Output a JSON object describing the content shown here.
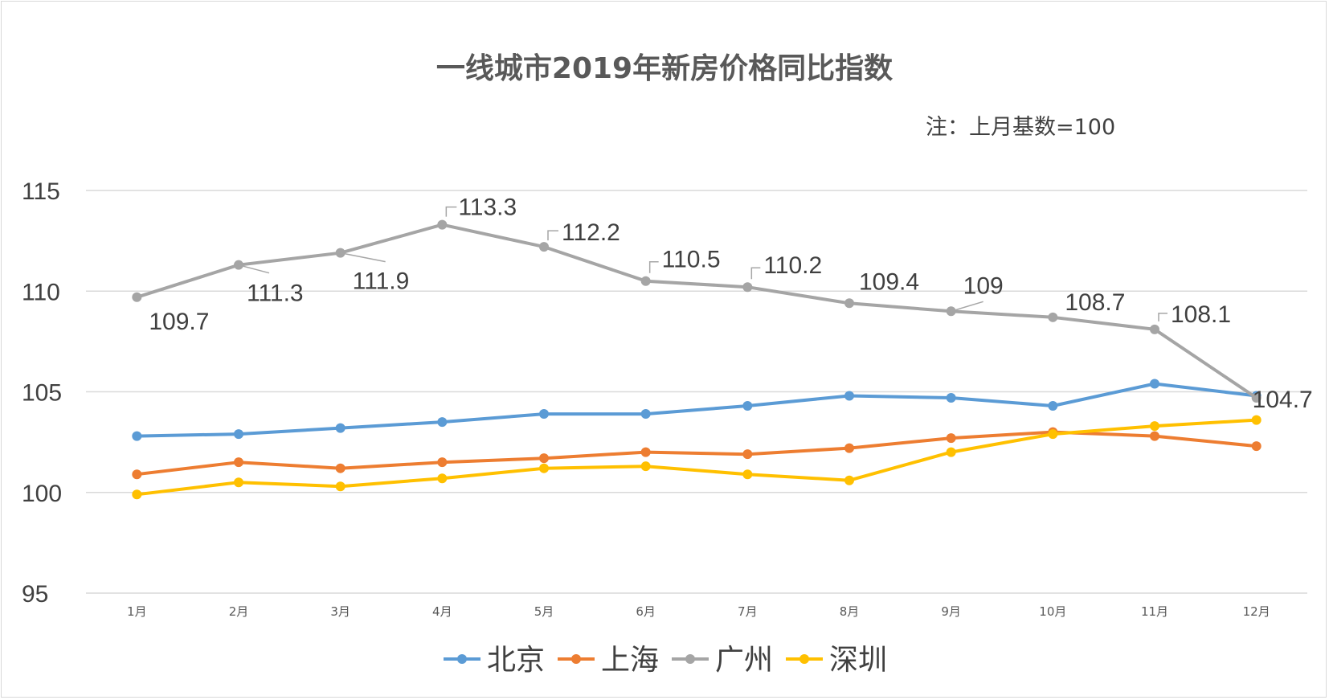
{
  "chart_data": {
    "type": "line",
    "title": "一线城市2019年新房价格同比指数",
    "annotation": "注：上月基数=100",
    "categories": [
      "1月",
      "2月",
      "3月",
      "4月",
      "5月",
      "6月",
      "7月",
      "8月",
      "9月",
      "10月",
      "11月",
      "12月"
    ],
    "ylim": [
      95,
      115
    ],
    "yticks": [
      95,
      100,
      105,
      110,
      115
    ],
    "grid": true,
    "legend_position": "bottom",
    "series": [
      {
        "name": "北京",
        "color": "#5b9bd5",
        "values": [
          102.8,
          102.9,
          103.2,
          103.5,
          103.9,
          103.9,
          104.3,
          104.8,
          104.7,
          104.3,
          105.4,
          104.8
        ]
      },
      {
        "name": "上海",
        "color": "#ed7d31",
        "values": [
          100.9,
          101.5,
          101.2,
          101.5,
          101.7,
          102.0,
          101.9,
          102.2,
          102.7,
          103.0,
          102.8,
          102.3
        ]
      },
      {
        "name": "广州",
        "color": "#a5a5a5",
        "values": [
          109.7,
          111.3,
          111.9,
          113.3,
          112.2,
          110.5,
          110.2,
          109.4,
          109.0,
          108.7,
          108.1,
          104.7
        ],
        "data_labels": [
          "109.7",
          "111.3",
          "111.9",
          "113.3",
          "112.2",
          "110.5",
          "110.2",
          "109.4",
          "109",
          "108.7",
          "108.1",
          "104.7"
        ]
      },
      {
        "name": "深圳",
        "color": "#ffc000",
        "values": [
          99.9,
          100.5,
          100.3,
          100.7,
          101.2,
          101.3,
          100.9,
          100.6,
          102.0,
          102.9,
          103.3,
          103.6
        ]
      }
    ]
  }
}
